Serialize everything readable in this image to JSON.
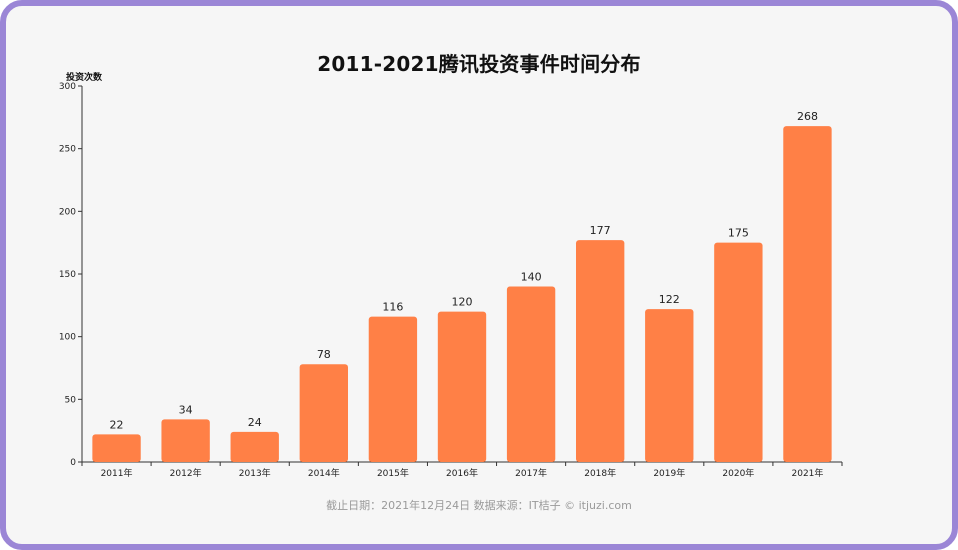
{
  "chart_data": {
    "type": "bar",
    "title": "2011-2021腾讯投资事件时间分布",
    "xlabel": "",
    "ylabel": "投资次数",
    "categories": [
      "2011年",
      "2012年",
      "2013年",
      "2014年",
      "2015年",
      "2016年",
      "2017年",
      "2018年",
      "2019年",
      "2020年",
      "2021年"
    ],
    "values": [
      22,
      34,
      24,
      78,
      116,
      120,
      140,
      177,
      122,
      175,
      268
    ],
    "ylim": [
      0,
      300
    ],
    "yticks": [
      0,
      50,
      100,
      150,
      200,
      250,
      300
    ],
    "grid": false,
    "legend": "none",
    "bar_color": "#ff8046",
    "data_labels": true
  },
  "footer": {
    "source": "截止日期：2021年12月24日   数据来源：IT桔子 © itjuzi.com"
  }
}
